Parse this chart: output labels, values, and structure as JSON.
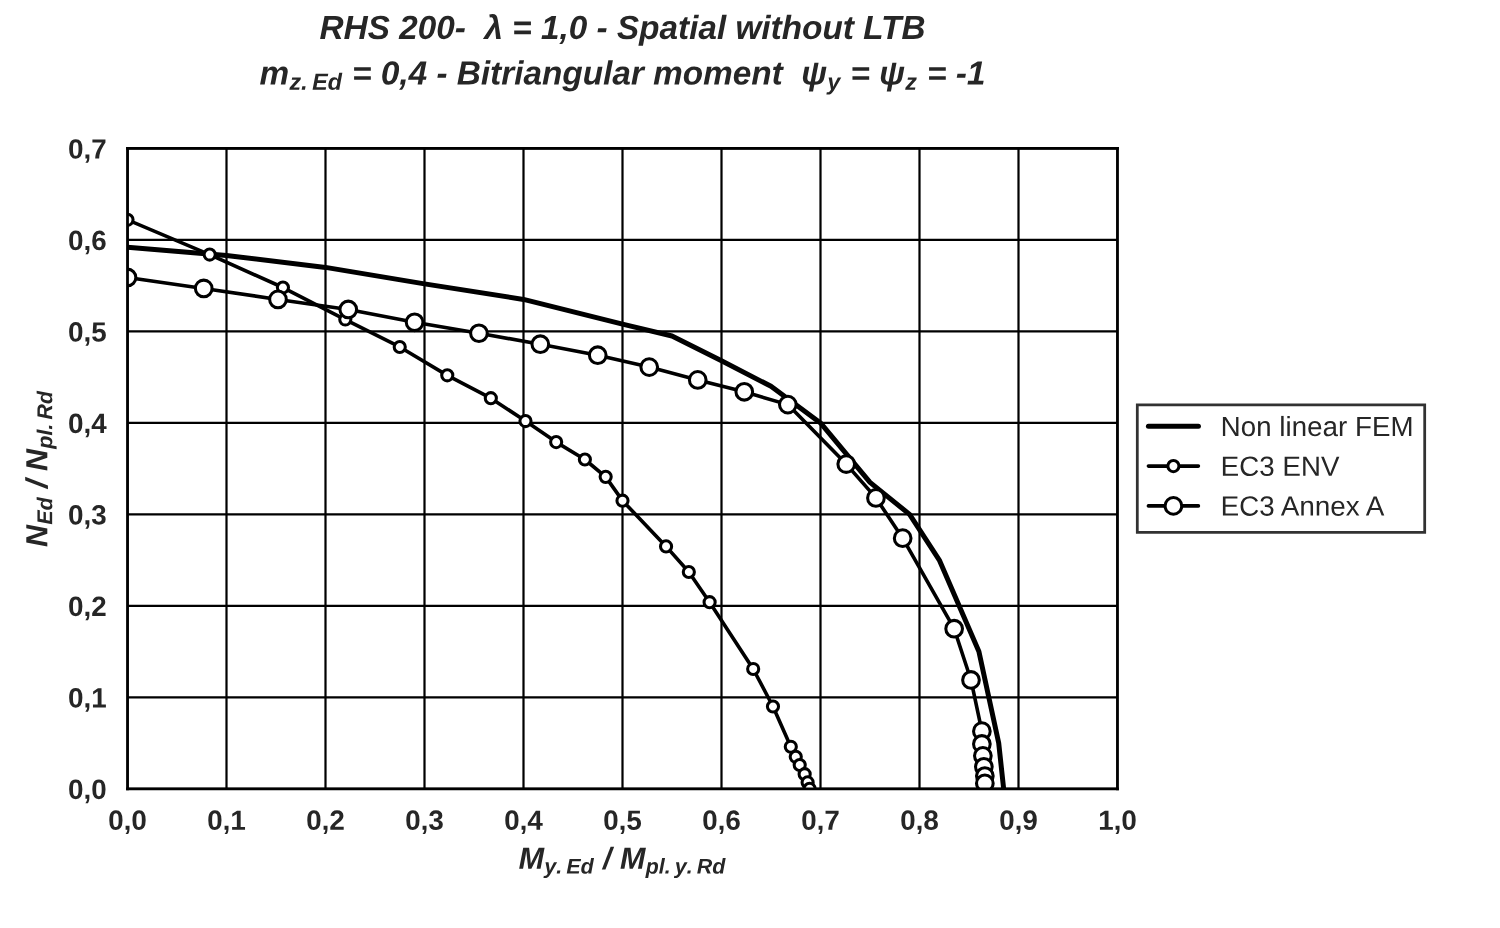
{
  "chart_data": {
    "type": "line",
    "title": "RHS 200-  λ = 1,0 - Spatial without LTB",
    "subtitle": "m$_{z.Ed}$ = 0,4 - Bitriangular moment  ψ$_{y}$ = ψ$_{z}$ = -1",
    "xlabel": "M$_{y.Ed}$ / M$_{pl.y.Rd}$",
    "ylabel": "N$_{Ed}$ / N$_{pl.Rd}$",
    "xlim": [
      0,
      1.0
    ],
    "ylim": [
      0,
      0.7
    ],
    "xticks": [
      {
        "value": 0,
        "label": "0,0"
      },
      {
        "value": 0.1,
        "label": "0,1"
      },
      {
        "value": 0.2,
        "label": "0,2"
      },
      {
        "value": 0.3,
        "label": "0,3"
      },
      {
        "value": 0.4,
        "label": "0,4"
      },
      {
        "value": 0.5,
        "label": "0,5"
      },
      {
        "value": 0.6,
        "label": "0,6"
      },
      {
        "value": 0.7,
        "label": "0,7"
      },
      {
        "value": 0.8,
        "label": "0,8"
      },
      {
        "value": 0.9,
        "label": "0,9"
      },
      {
        "value": 1.0,
        "label": "1,0"
      }
    ],
    "yticks": [
      {
        "value": 0,
        "label": "0,0"
      },
      {
        "value": 0.1,
        "label": "0,1"
      },
      {
        "value": 0.2,
        "label": "0,2"
      },
      {
        "value": 0.3,
        "label": "0,3"
      },
      {
        "value": 0.4,
        "label": "0,4"
      },
      {
        "value": 0.5,
        "label": "0,5"
      },
      {
        "value": 0.6,
        "label": "0,6"
      },
      {
        "value": 0.7,
        "label": "0,7"
      }
    ],
    "grid": true,
    "legend": "right",
    "series": [
      {
        "name": "Non linear FEM",
        "color": "#000000",
        "marker": "none",
        "x": [
          0,
          0.1,
          0.2,
          0.3,
          0.4,
          0.5,
          0.55,
          0.6,
          0.65,
          0.7,
          0.75,
          0.79,
          0.82,
          0.84,
          0.86,
          0.87,
          0.88,
          0.885
        ],
        "values": [
          0.592,
          0.583,
          0.57,
          0.552,
          0.535,
          0.508,
          0.495,
          0.468,
          0.44,
          0.4,
          0.335,
          0.3,
          0.25,
          0.2,
          0.15,
          0.1,
          0.05,
          0
        ]
      },
      {
        "name": "EC3 ENV",
        "color": "#000000",
        "marker": "circle",
        "x": [
          0,
          0.083,
          0.157,
          0.22,
          0.275,
          0.323,
          0.367,
          0.402,
          0.433,
          0.462,
          0.483,
          0.5,
          0.544,
          0.567,
          0.588,
          0.632,
          0.652,
          0.67,
          0.675,
          0.679,
          0.684,
          0.687,
          0.689
        ],
        "values": [
          0.622,
          0.584,
          0.548,
          0.513,
          0.483,
          0.452,
          0.427,
          0.402,
          0.379,
          0.36,
          0.341,
          0.315,
          0.265,
          0.237,
          0.204,
          0.131,
          0.09,
          0.046,
          0.035,
          0.026,
          0.016,
          0.007,
          0
        ]
      },
      {
        "name": "EC3 Annex A",
        "color": "#000000",
        "marker": "circle",
        "x": [
          0,
          0.077,
          0.152,
          0.223,
          0.29,
          0.355,
          0.417,
          0.475,
          0.527,
          0.576,
          0.623,
          0.667,
          0.726,
          0.756,
          0.783,
          0.835,
          0.852,
          0.863,
          0.863,
          0.864,
          0.865,
          0.866,
          0.866
        ],
        "values": [
          0.559,
          0.547,
          0.535,
          0.524,
          0.51,
          0.498,
          0.486,
          0.474,
          0.461,
          0.447,
          0.434,
          0.42,
          0.355,
          0.318,
          0.274,
          0.175,
          0.119,
          0.063,
          0.049,
          0.036,
          0.024,
          0.014,
          0.006
        ]
      }
    ]
  }
}
